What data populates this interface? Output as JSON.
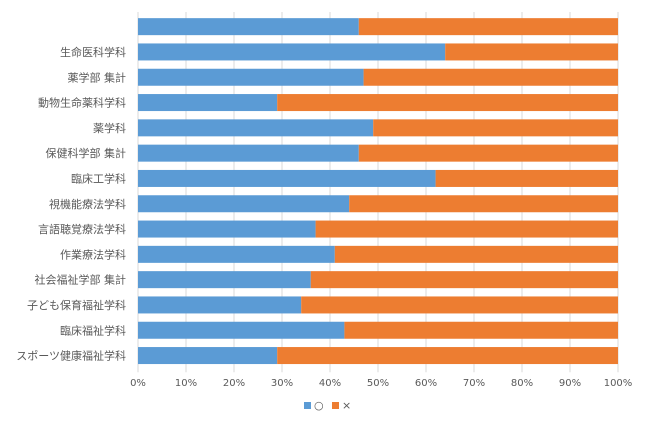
{
  "chart_data": {
    "type": "bar",
    "orientation": "horizontal",
    "stacked": "100%",
    "categories": [
      "",
      "生命医科学科",
      "薬学部 集計",
      "動物生命薬科学科",
      "薬学科",
      "保健科学部 集計",
      "臨床工学科",
      "視機能療法学科",
      "言語聴覚療法学科",
      "作業療法学科",
      "社会福祉学部 集計",
      "子ども保育福祉学科",
      "臨床福祉学科",
      "スポーツ健康福祉学科"
    ],
    "series": [
      {
        "name": "○",
        "color": "#5B9BD5",
        "values": [
          46,
          64,
          47,
          29,
          49,
          46,
          62,
          44,
          37,
          41,
          36,
          34,
          43,
          29
        ]
      },
      {
        "name": "×",
        "color": "#ED7D31",
        "values": [
          54,
          36,
          53,
          71,
          51,
          54,
          38,
          56,
          63,
          59,
          64,
          66,
          57,
          71
        ]
      }
    ],
    "x_ticks": [
      "0%",
      "10%",
      "20%",
      "30%",
      "40%",
      "50%",
      "60%",
      "70%",
      "80%",
      "90%",
      "100%"
    ],
    "xlim": [
      0,
      100
    ],
    "grid": "vertical",
    "legend": "bottom"
  }
}
